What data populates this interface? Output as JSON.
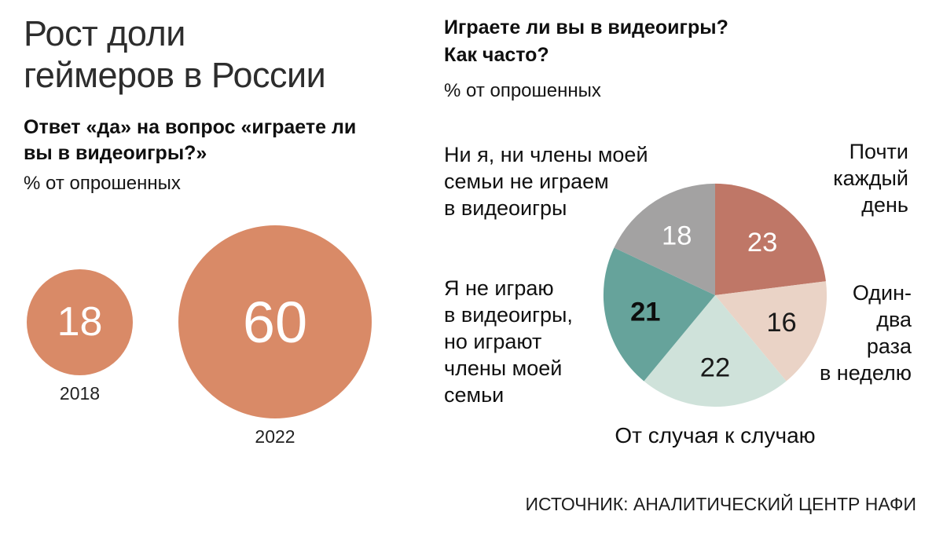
{
  "left": {
    "title": "Рост доли\nгеймеров в России",
    "subtitle": "Ответ «да» на вопрос «играете ли\nвы в видеоигры?»",
    "unit": "% от опрошенных"
  },
  "right": {
    "title": "Играете ли вы в видеоигры?\nКак часто?",
    "unit": "% от опрошенных",
    "source": "ИСТОЧНИК: АНАЛИТИЧЕСКИЙ ЦЕНТР НАФИ"
  },
  "chart_data": [
    {
      "type": "bubble",
      "title": "Рост доли геймеров в России",
      "subtitle": "Ответ «да» на вопрос «играете ли вы в видеоигры?»",
      "unit": "% от опрошенных",
      "categories": [
        "2018",
        "2022"
      ],
      "values": [
        18,
        60
      ],
      "color": "#d98a67",
      "value_color": "#ffffff"
    },
    {
      "type": "pie",
      "title": "Играете ли вы в видеоигры? Как часто?",
      "unit": "% от опрошенных",
      "start_angle_deg": 0,
      "direction": "clockwise",
      "total": 100,
      "slices": [
        {
          "key": "daily",
          "label": "Почти каждый день",
          "value": 23,
          "color": "#bf7767",
          "value_color": "#ffffff"
        },
        {
          "key": "weekly",
          "label": "Один-два раза в неделю",
          "value": 16,
          "color": "#ead3c6",
          "value_color": "#1a1a1a"
        },
        {
          "key": "occasional",
          "label": "От случая к случаю",
          "value": 22,
          "color": "#cfe2da",
          "value_color": "#1a1a1a"
        },
        {
          "key": "family",
          "label": "Я не играю в видеоигры, но играют члены моей семьи",
          "value": 21,
          "color": "#66a39b",
          "value_color": "#0d0d0d",
          "bold": true
        },
        {
          "key": "none",
          "label": "Ни я, ни члены моей семьи не играем в видеоигры",
          "value": 18,
          "color": "#a3a2a2",
          "value_color": "#ffffff"
        }
      ],
      "labels_display": {
        "daily": "Почти\nкаждый\nдень",
        "weekly": "Один-\nдва\nраза\nв неделю",
        "occasional": "От случая к случаю",
        "family": "Я не играю\nв видеоигры,\nно играют\nчлены моей\nсемьи",
        "none": "Ни я, ни члены моей\nсемьи не играем\nв видеоигры"
      }
    }
  ]
}
